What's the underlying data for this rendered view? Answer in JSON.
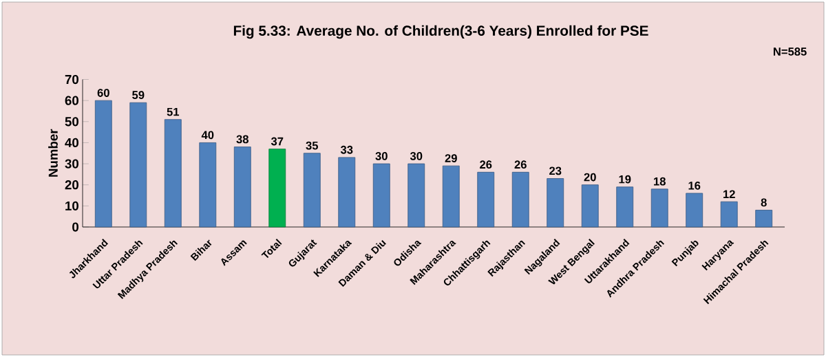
{
  "chart_data": {
    "type": "bar",
    "title": "Fig 5.33: Average No. of Children(3-6 Years) Enrolled for PSE",
    "ylabel": "Number",
    "annotations": [
      "N=585"
    ],
    "categories": [
      "Jharkhand",
      "Uttar Pradesh",
      "Madhya Pradesh",
      "Bihar",
      "Assam",
      "Total",
      "Gujarat",
      "Karnataka",
      "Daman & Diu",
      "Odisha",
      "Maharashtra",
      "Chhattisgarh",
      "Rajasthan",
      "Nagaland",
      "West Bengal",
      "Uttarakhand",
      "Andhra Pradesh",
      "Punjab",
      "Haryana",
      "Himachal Pradesh"
    ],
    "values": [
      60,
      59,
      51,
      40,
      38,
      37,
      35,
      33,
      30,
      30,
      29,
      26,
      26,
      23,
      20,
      19,
      18,
      16,
      12,
      8
    ],
    "colors": [
      "#4f81bd",
      "#4f81bd",
      "#4f81bd",
      "#4f81bd",
      "#4f81bd",
      "#00b050",
      "#4f81bd",
      "#4f81bd",
      "#4f81bd",
      "#4f81bd",
      "#4f81bd",
      "#4f81bd",
      "#4f81bd",
      "#4f81bd",
      "#4f81bd",
      "#4f81bd",
      "#4f81bd",
      "#4f81bd",
      "#4f81bd",
      "#4f81bd"
    ],
    "ylim": [
      0,
      70
    ],
    "yticks": [
      0,
      10,
      20,
      30,
      40,
      50,
      60,
      70
    ],
    "data_labels": true
  }
}
